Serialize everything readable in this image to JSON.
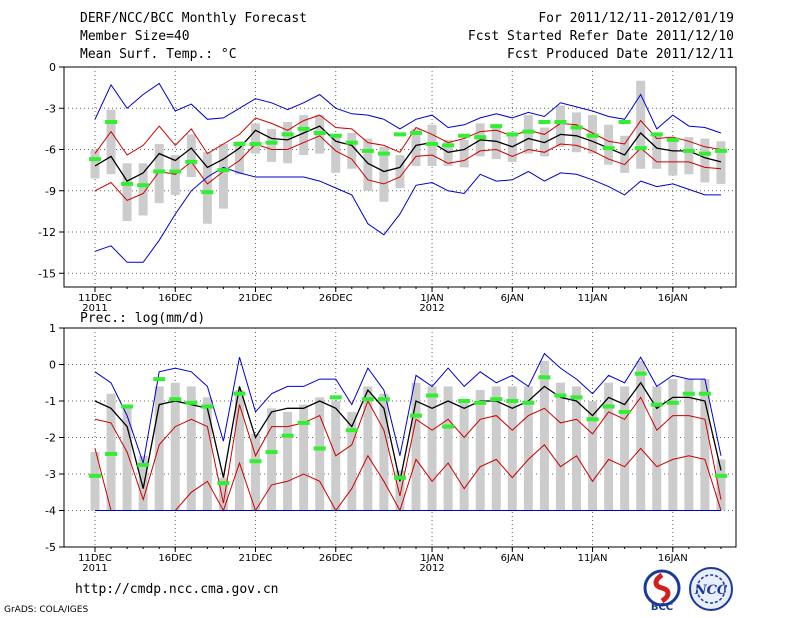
{
  "header": {
    "title": "DERF/NCC/BCC Monthly Forecast",
    "member_size": "Member Size=40",
    "variable": "Mean Surf. Temp.: °C",
    "period": "For 2011/12/11-2012/01/19",
    "fcst_started": "Fcst Started Refer Date 2011/12/10",
    "fcst_produced": "Fcst Produced Date 2011/12/11"
  },
  "footer": {
    "url": "http://cmdp.ncc.cma.gov.cn",
    "software": "GrADS: COLA/IGES",
    "logo_bcc": "BCC",
    "logo_ncc": "NCC"
  },
  "colors": {
    "max_min_line": "#0000cc",
    "spread_line": "#cc0000",
    "mean_line": "#000000",
    "marker": "#33ee33",
    "box": "#cccccc"
  },
  "chart_data": [
    {
      "name": "temperature",
      "type": "line",
      "title": "Mean Surf. Temp.: °C",
      "ylim": [
        -16,
        0
      ],
      "yticks": [
        0,
        -3,
        -6,
        -9,
        -12,
        -15
      ],
      "ytick_labels": [
        "0",
        "-3",
        "-6",
        "-9",
        "-12",
        "-15"
      ],
      "xticks": [
        {
          "day": 0,
          "label": "11DEC",
          "sub": "2011"
        },
        {
          "day": 5,
          "label": "16DEC",
          "sub": ""
        },
        {
          "day": 10,
          "label": "21DEC",
          "sub": ""
        },
        {
          "day": 15,
          "label": "26DEC",
          "sub": ""
        },
        {
          "day": 21,
          "label": "1JAN",
          "sub": "2012"
        },
        {
          "day": 26,
          "label": "6JAN",
          "sub": ""
        },
        {
          "day": 31,
          "label": "11JAN",
          "sub": ""
        },
        {
          "day": 36,
          "label": "16JAN",
          "sub": ""
        }
      ],
      "days": 40,
      "grid": true,
      "series": [
        {
          "name": "max",
          "color": "#0000cc",
          "values": [
            -3.8,
            -1.3,
            -3,
            -2,
            -1.2,
            -3.2,
            -2.7,
            -3.8,
            -3.7,
            -3,
            -2.3,
            -2.6,
            -3.1,
            -2.6,
            -2,
            -3,
            -3.4,
            -3.5,
            -3.8,
            -4.5,
            -3.8,
            -3.5,
            -4.4,
            -4.2,
            -3.7,
            -3.4,
            -3.7,
            -3.3,
            -3.6,
            -2.6,
            -2.9,
            -3.2,
            -3.6,
            -3.8,
            -2,
            -4.5,
            -3.5,
            -4.3,
            -4.4,
            -4.8
          ]
        },
        {
          "name": "spread_upper",
          "color": "#cc0000",
          "values": [
            -6.3,
            -4.7,
            -6.4,
            -5.7,
            -4.3,
            -5.7,
            -4.5,
            -6.3,
            -5.6,
            -4.9,
            -3.7,
            -4.1,
            -4.6,
            -3.9,
            -3.5,
            -4.4,
            -4.5,
            -5.5,
            -5.7,
            -6.2,
            -4.4,
            -4.9,
            -5.5,
            -5.2,
            -4.7,
            -4.6,
            -5,
            -4.6,
            -4.9,
            -4.1,
            -4.2,
            -4.8,
            -5.4,
            -5.6,
            -3.9,
            -5.2,
            -5.1,
            -5.4,
            -5.8,
            -6
          ]
        },
        {
          "name": "mean",
          "color": "#000000",
          "values": [
            -7.2,
            -6.5,
            -8.3,
            -7.7,
            -6.3,
            -6.8,
            -5.9,
            -7.3,
            -6.7,
            -5.9,
            -4.6,
            -5.2,
            -5.3,
            -4.8,
            -4.3,
            -5.4,
            -5.7,
            -7,
            -7.6,
            -7.3,
            -5.7,
            -5.5,
            -6.2,
            -6,
            -5.3,
            -5.4,
            -5.8,
            -5.2,
            -5.5,
            -4.9,
            -5,
            -5.4,
            -5.9,
            -6.4,
            -4.8,
            -5.9,
            -6.1,
            -6.1,
            -6.6,
            -6.9
          ]
        },
        {
          "name": "spread_lower",
          "color": "#cc0000",
          "values": [
            -9,
            -8.4,
            -9.7,
            -9.2,
            -7.6,
            -7.8,
            -6.9,
            -8.5,
            -7.6,
            -6.8,
            -5.6,
            -6,
            -6,
            -5.5,
            -5,
            -6.1,
            -6.7,
            -8.2,
            -8.5,
            -8,
            -6.5,
            -6.4,
            -7,
            -6.8,
            -6.1,
            -6,
            -6.5,
            -6,
            -6.2,
            -5.6,
            -5.7,
            -6.1,
            -6.7,
            -7.1,
            -5.9,
            -6.9,
            -6.9,
            -6.9,
            -7.3,
            -7.4
          ]
        },
        {
          "name": "min",
          "color": "#0000cc",
          "values": [
            -13.4,
            -13,
            -14.2,
            -14.2,
            -12.6,
            -10.7,
            -9,
            -8,
            -7.3,
            -7.7,
            -8,
            -8,
            -8,
            -8,
            -8.3,
            -8.8,
            -9.3,
            -11.4,
            -12.2,
            -10.7,
            -8.6,
            -8.4,
            -9,
            -9.2,
            -7.8,
            -8.3,
            -8.2,
            -7.6,
            -8.3,
            -7.7,
            -7.8,
            -8.2,
            -8.7,
            -9.3,
            -8.3,
            -8.7,
            -8.5,
            -8.9,
            -9.3,
            -9.3
          ]
        }
      ],
      "boxes": [
        {
          "low": -8.1,
          "high": -6
        },
        {
          "low": -7.8,
          "high": -3.1
        },
        {
          "low": -11.2,
          "high": -7
        },
        {
          "low": -10.8,
          "high": -7
        },
        {
          "low": -9.9,
          "high": -5.6
        },
        {
          "low": -9.3,
          "high": -6.4
        },
        {
          "low": -8,
          "high": -4.9
        },
        {
          "low": -11.4,
          "high": -6.2
        },
        {
          "low": -10.3,
          "high": -5.6
        },
        {
          "low": -7.8,
          "high": -5.4
        },
        {
          "low": -6.3,
          "high": -4.1
        },
        {
          "low": -6.9,
          "high": -4.5
        },
        {
          "low": -7,
          "high": -4
        },
        {
          "low": -6.4,
          "high": -3.5
        },
        {
          "low": -6.3,
          "high": -3.5
        },
        {
          "low": -7.7,
          "high": -5.1
        },
        {
          "low": -7.4,
          "high": -4.8
        },
        {
          "low": -9,
          "high": -5.2
        },
        {
          "low": -9.8,
          "high": -5.8
        },
        {
          "low": -8.8,
          "high": -6.4
        },
        {
          "low": -7.2,
          "high": -4.5
        },
        {
          "low": -7.2,
          "high": -4.2
        },
        {
          "low": -7.2,
          "high": -5.3
        },
        {
          "low": -7.3,
          "high": -5.3
        },
        {
          "low": -6.5,
          "high": -4.1
        },
        {
          "low": -6.7,
          "high": -4.4
        },
        {
          "low": -6.9,
          "high": -4.8
        },
        {
          "low": -6.3,
          "high": -3.5
        },
        {
          "low": -6.5,
          "high": -4.4
        },
        {
          "low": -5.8,
          "high": -2.8
        },
        {
          "low": -6.2,
          "high": -3.3
        },
        {
          "low": -6.3,
          "high": -3.5
        },
        {
          "low": -7.1,
          "high": -4.2
        },
        {
          "low": -7.7,
          "high": -5
        },
        {
          "low": -7.4,
          "high": -1
        },
        {
          "low": -7.4,
          "high": -5
        },
        {
          "low": -7.9,
          "high": -5.4
        },
        {
          "low": -7.8,
          "high": -5.1
        },
        {
          "low": -8.4,
          "high": -5.2
        },
        {
          "low": -8.5,
          "high": -5.4
        }
      ],
      "markers": [
        -6.7,
        -4,
        -8.5,
        -8.6,
        -7.6,
        -7.6,
        -6.9,
        -9.1,
        -7.5,
        -5.6,
        -5.6,
        -5.5,
        -4.9,
        -4.5,
        -4.8,
        -5,
        -5.5,
        -6.1,
        -6.3,
        -4.9,
        -4.8,
        -5.6,
        -5.7,
        -5,
        -5.1,
        -4.3,
        -4.9,
        -4.7,
        -4,
        -4,
        -4.4,
        -5,
        -5.9,
        -4,
        -5.9,
        -4.9,
        -5.3,
        -6.1,
        -6.3,
        -6.1
      ]
    },
    {
      "name": "precipitation",
      "type": "line",
      "title": "Prec.: log(mm/d)",
      "ylim": [
        -5,
        1
      ],
      "yticks": [
        1,
        0,
        -1,
        -2,
        -3,
        -4,
        -5
      ],
      "ytick_labels": [
        "1",
        "0",
        "-1",
        "-2",
        "-3",
        "-4",
        "-5"
      ],
      "xticks": [
        {
          "day": 0,
          "label": "11DEC",
          "sub": "2011"
        },
        {
          "day": 5,
          "label": "16DEC",
          "sub": ""
        },
        {
          "day": 10,
          "label": "21DEC",
          "sub": ""
        },
        {
          "day": 15,
          "label": "26DEC",
          "sub": ""
        },
        {
          "day": 21,
          "label": "1JAN",
          "sub": "2012"
        },
        {
          "day": 26,
          "label": "6JAN",
          "sub": ""
        },
        {
          "day": 31,
          "label": "11JAN",
          "sub": ""
        },
        {
          "day": 36,
          "label": "16JAN",
          "sub": ""
        }
      ],
      "days": 40,
      "grid": true,
      "baseline": -4,
      "series": [
        {
          "name": "max",
          "color": "#0000cc",
          "values": [
            -0.2,
            -0.5,
            -1.4,
            -2.7,
            -0.2,
            -0.1,
            -0.2,
            -0.6,
            -2.1,
            0.2,
            -1.3,
            -0.8,
            -0.6,
            -0.6,
            -0.4,
            -0.4,
            -1.1,
            -0.1,
            -0.7,
            -2.5,
            -0.3,
            -0.6,
            -0.1,
            -0.6,
            -0.2,
            -0.5,
            -0.3,
            -0.6,
            0.3,
            -0.1,
            -0.4,
            -0.8,
            -0.3,
            -0.5,
            0.2,
            -0.6,
            -0.3,
            -0.4,
            -0.4,
            -2.5
          ]
        },
        {
          "name": "spread_upper",
          "color": "#cc0000",
          "values": [
            -1.5,
            -1.6,
            -2.4,
            -3.7,
            -2.2,
            -1.7,
            -1.5,
            -1.7,
            -3.8,
            -1.1,
            -2.5,
            -1.7,
            -1.7,
            -1.6,
            -1.4,
            -2.5,
            -2.2,
            -1,
            -1.8,
            -3.6,
            -1.5,
            -1.8,
            -1.5,
            -2,
            -1.5,
            -1.4,
            -1.8,
            -1.4,
            -1.2,
            -1.6,
            -1.5,
            -1.9,
            -1.3,
            -1.5,
            -0.9,
            -1.8,
            -1.4,
            -1.4,
            -1.5,
            -3.7
          ]
        },
        {
          "name": "mean",
          "color": "#000000",
          "values": [
            -1,
            -1.2,
            -1.7,
            -3.4,
            -1.1,
            -1,
            -1.1,
            -1.2,
            -3.1,
            -0.6,
            -2,
            -1.3,
            -1.2,
            -1.2,
            -1,
            -1.2,
            -1.7,
            -0.7,
            -1.2,
            -3.2,
            -1,
            -1.2,
            -1,
            -1.2,
            -1,
            -1,
            -1.2,
            -1,
            -0.6,
            -0.9,
            -1,
            -1.4,
            -0.9,
            -1.1,
            -0.5,
            -1.2,
            -0.9,
            -0.9,
            -1,
            -2.9
          ]
        },
        {
          "name": "spread_lower",
          "color": "#cc0000",
          "values": [
            -2.3,
            -4,
            -4,
            -4,
            -4,
            -4,
            -3.5,
            -3.2,
            -4,
            -2.7,
            -4,
            -3.3,
            -3.2,
            -3,
            -3.2,
            -4,
            -3.4,
            -2.5,
            -3.2,
            -4,
            -2.6,
            -3.2,
            -2.7,
            -3.4,
            -2.8,
            -2.6,
            -3.1,
            -2.6,
            -2.2,
            -2.8,
            -2.5,
            -3.2,
            -2.6,
            -2.8,
            -2.3,
            -2.8,
            -2.6,
            -2.5,
            -2.6,
            -4
          ]
        },
        {
          "name": "min",
          "color": "#0000cc",
          "values": [
            -4,
            -4,
            -4,
            -4,
            -4,
            -4,
            -4,
            -4,
            -4,
            -4,
            -4,
            -4,
            -4,
            -4,
            -4,
            -4,
            -4,
            -4,
            -4,
            -4,
            -4,
            -4,
            -4,
            -4,
            -4,
            -4,
            -4,
            -4,
            -4,
            -4,
            -4,
            -4,
            -4,
            -4,
            -4,
            -4,
            -4,
            -4,
            -4,
            -4
          ]
        }
      ],
      "boxes": [
        {
          "low": -4,
          "high": -2.4
        },
        {
          "low": -4,
          "high": -0.8
        },
        {
          "low": -4,
          "high": -1.1
        },
        {
          "low": -4,
          "high": -2.5
        },
        {
          "low": -4,
          "high": -0.6
        },
        {
          "low": -4,
          "high": -0.5
        },
        {
          "low": -4,
          "high": -0.6
        },
        {
          "low": -4,
          "high": -0.9
        },
        {
          "low": -4,
          "high": -3.1
        },
        {
          "low": -4,
          "high": -0.7
        },
        {
          "low": -4,
          "high": -1.9
        },
        {
          "low": -4,
          "high": -1.2
        },
        {
          "low": -4,
          "high": -1.3
        },
        {
          "low": -4,
          "high": -1.1
        },
        {
          "low": -4,
          "high": -0.9
        },
        {
          "low": -4,
          "high": -1
        },
        {
          "low": -4,
          "high": -1.3
        },
        {
          "low": -4,
          "high": -0.6
        },
        {
          "low": -4,
          "high": -0.8
        },
        {
          "low": -4,
          "high": -2.9
        },
        {
          "low": -4,
          "high": -0.5
        },
        {
          "low": -4,
          "high": -0.6
        },
        {
          "low": -4,
          "high": -0.6
        },
        {
          "low": -4,
          "high": -1
        },
        {
          "low": -4,
          "high": -0.7
        },
        {
          "low": -4,
          "high": -0.6
        },
        {
          "low": -4,
          "high": -0.6
        },
        {
          "low": -4,
          "high": -0.6
        },
        {
          "low": -4,
          "high": 0.1
        },
        {
          "low": -4,
          "high": -0.5
        },
        {
          "low": -4,
          "high": -0.6
        },
        {
          "low": -4,
          "high": -1
        },
        {
          "low": -4,
          "high": -0.5
        },
        {
          "low": -4,
          "high": -0.6
        },
        {
          "low": -4,
          "high": 0.1
        },
        {
          "low": -4,
          "high": -0.6
        },
        {
          "low": -4,
          "high": -0.4
        },
        {
          "low": -4,
          "high": -0.4
        },
        {
          "low": -4,
          "high": -0.4
        },
        {
          "low": -4,
          "high": -2.6
        }
      ],
      "markers": [
        -3.05,
        -2.45,
        -1.15,
        -2.75,
        -0.4,
        -0.95,
        -1.05,
        -1.15,
        -3.25,
        -0.8,
        -2.65,
        -2.4,
        -1.95,
        -1.6,
        -2.3,
        -0.9,
        -1.8,
        -0.95,
        -0.95,
        -3.1,
        -1.4,
        -0.85,
        -1.7,
        -1,
        -1.05,
        -0.95,
        -1,
        -1.05,
        -0.35,
        -0.85,
        -0.9,
        -1.5,
        -1.15,
        -1.3,
        -0.25,
        -1.1,
        -1.05,
        -0.8,
        -0.8,
        -3.05
      ]
    }
  ]
}
